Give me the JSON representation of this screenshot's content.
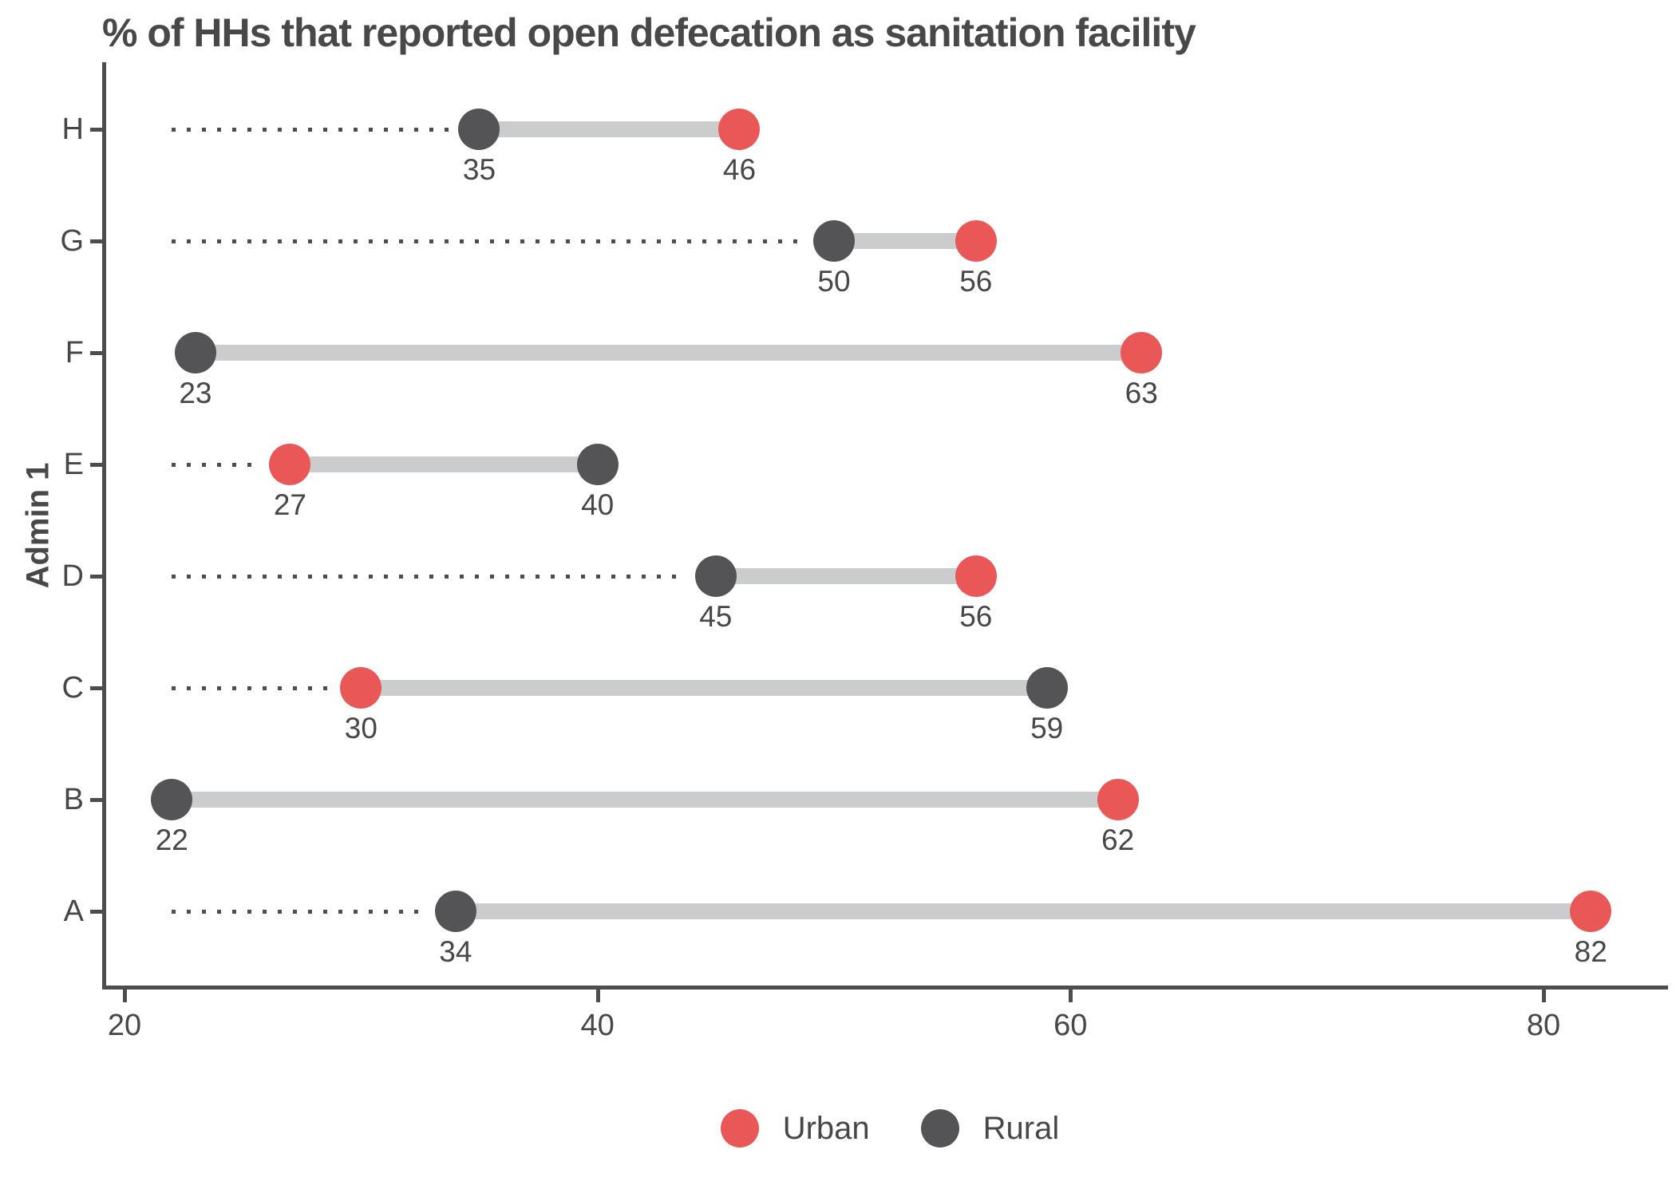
{
  "title": "% of HHs that reported open defecation as sanitation facility",
  "colors": {
    "urban": "#E95757",
    "rural": "#545456",
    "connector": "#CBCCCE",
    "axis": "#4D4D4F",
    "text": "#47474A"
  },
  "legend": [
    {
      "label": "Urban",
      "color_key": "urban"
    },
    {
      "label": "Rural",
      "color_key": "rural"
    }
  ],
  "chart_data": {
    "type": "dumbbell",
    "title": "% of HHs that reported open defecation as sanitation facility",
    "xlabel": "",
    "ylabel": "Admin 1",
    "categories": [
      "H",
      "G",
      "F",
      "E",
      "D",
      "C",
      "B",
      "A"
    ],
    "series": [
      {
        "name": "Urban",
        "color": "#E95757",
        "values": [
          46,
          56,
          63,
          27,
          56,
          30,
          62,
          82
        ]
      },
      {
        "name": "Rural",
        "color": "#545456",
        "values": [
          35,
          50,
          23,
          40,
          45,
          59,
          22,
          34
        ]
      }
    ],
    "x_ticks": [
      20,
      40,
      60,
      80
    ],
    "xlim": [
      19,
      86
    ],
    "grid": false,
    "value_labels": true,
    "legend_position": "bottom",
    "leader_lines": "dotted from global minimum to first point"
  }
}
